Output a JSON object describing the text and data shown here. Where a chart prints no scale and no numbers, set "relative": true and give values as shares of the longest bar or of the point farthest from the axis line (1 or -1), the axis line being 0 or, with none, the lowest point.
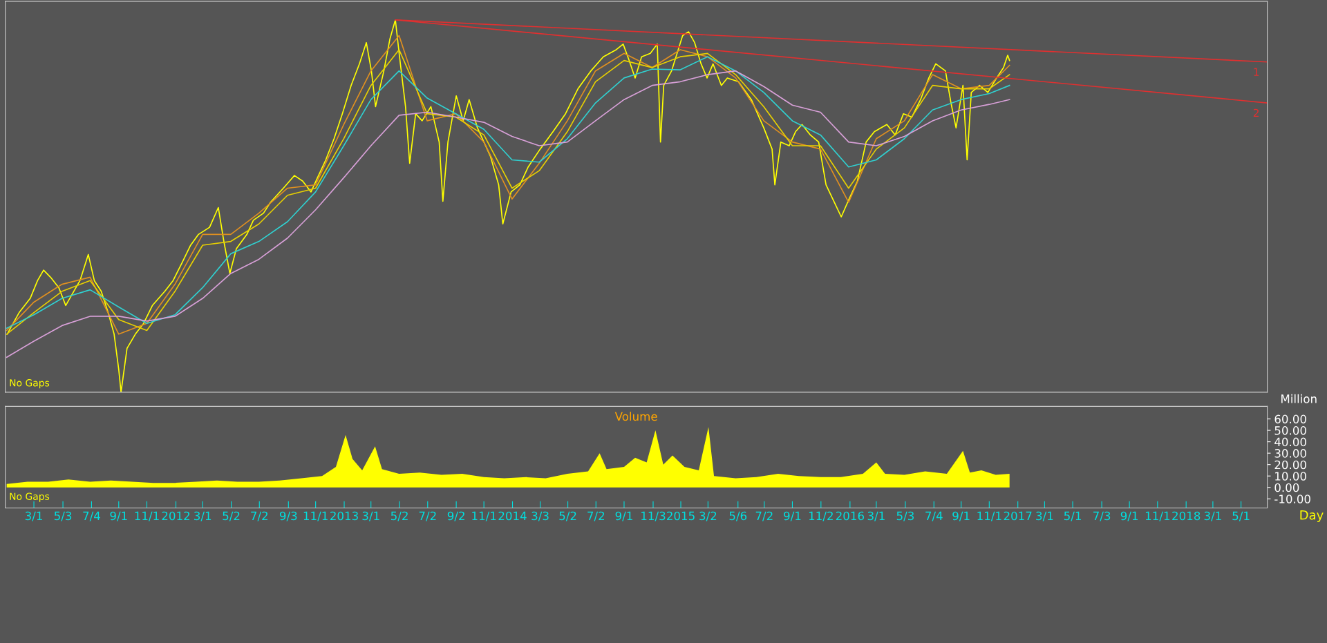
{
  "chart_data": [
    {
      "type": "line",
      "relative": true,
      "grid": false,
      "marker": "none",
      "line_style": "solid",
      "xlim": [
        "2010-12-29",
        "2018-06-27"
      ],
      "annotations": [
        "No Gaps",
        "1",
        "2"
      ],
      "series": [
        {
          "color": "#ffff00",
          "x": [
            "2011-01-02",
            "2011-01-15",
            "2011-01-28",
            "2011-02-21",
            "2011-03-09",
            "2011-03-22",
            "2011-04-06",
            "2011-04-24",
            "2011-05-09",
            "2011-05-22",
            "2011-06-09",
            "2011-06-27",
            "2011-07-10",
            "2011-07-25",
            "2011-08-09",
            "2011-08-22",
            "2011-09-01",
            "2011-09-06",
            "2011-09-19",
            "2011-10-07",
            "2011-10-25",
            "2011-11-13",
            "2011-12-10",
            "2011-12-28",
            "2012-01-16",
            "2012-02-04",
            "2012-02-21",
            "2012-03-16",
            "2012-04-04",
            "2012-04-16",
            "2012-04-29",
            "2012-05-13",
            "2012-06-05",
            "2012-06-19",
            "2012-07-11",
            "2012-07-26",
            "2012-08-23",
            "2012-09-16",
            "2012-10-04",
            "2012-10-22",
            "2012-11-05",
            "2012-11-23",
            "2012-12-11",
            "2012-12-29",
            "2013-01-17",
            "2013-02-04",
            "2013-02-19",
            "2013-03-02",
            "2013-03-11",
            "2013-03-29",
            "2013-04-11",
            "2013-04-23",
            "2013-05-02",
            "2013-05-15",
            "2013-05-24",
            "2013-06-06",
            "2013-06-20",
            "2013-07-09",
            "2013-07-27",
            "2013-08-04",
            "2013-08-15",
            "2013-09-02",
            "2013-09-17",
            "2013-09-30",
            "2013-10-18",
            "2013-11-15",
            "2013-12-03",
            "2013-12-12",
            "2013-12-30",
            "2014-01-18",
            "2014-02-05",
            "2014-03-03",
            "2014-03-31",
            "2014-04-27",
            "2014-05-24",
            "2014-06-21",
            "2014-07-18",
            "2014-08-15",
            "2014-08-30",
            "2014-09-12",
            "2014-09-25",
            "2014-10-09",
            "2014-10-28",
            "2014-11-12",
            "2014-11-19",
            "2014-11-26",
            "2014-12-13",
            "2015-01-06",
            "2015-01-19",
            "2015-02-01",
            "2015-02-15",
            "2015-02-28",
            "2015-03-13",
            "2015-03-31",
            "2015-04-13",
            "2015-05-07",
            "2015-06-04",
            "2015-07-01",
            "2015-07-19",
            "2015-07-25",
            "2015-08-07",
            "2015-08-25",
            "2015-09-08",
            "2015-09-22",
            "2015-10-10",
            "2015-10-28",
            "2015-11-13",
            "2015-12-01",
            "2015-12-16",
            "2016-01-02",
            "2016-01-20",
            "2016-02-08",
            "2016-02-26",
            "2016-03-24",
            "2016-04-11",
            "2016-04-29",
            "2016-05-17",
            "2016-06-05",
            "2016-06-23",
            "2016-07-08",
            "2016-07-29",
            "2016-08-10",
            "2016-08-21",
            "2016-09-05",
            "2016-09-14",
            "2016-09-23",
            "2016-10-11",
            "2016-10-29",
            "2016-11-17",
            "2016-12-02",
            "2016-12-11",
            "2016-12-15"
          ],
          "values": [
            0.156,
            0.185,
            0.214,
            0.252,
            0.3,
            0.328,
            0.309,
            0.281,
            0.233,
            0.261,
            0.3,
            0.37,
            0.3,
            0.271,
            0.214,
            0.156,
            0.061,
            0,
            0.118,
            0.156,
            0.185,
            0.233,
            0.271,
            0.3,
            0.347,
            0.395,
            0.424,
            0.443,
            0.496,
            0.405,
            0.319,
            0.385,
            0.424,
            0.462,
            0.481,
            0.51,
            0.548,
            0.582,
            0.567,
            0.538,
            0.576,
            0.624,
            0.681,
            0.748,
            0.824,
            0.882,
            0.939,
            0.863,
            0.767,
            0.863,
            0.948,
            1,
            0.901,
            0.767,
            0.615,
            0.748,
            0.729,
            0.767,
            0.672,
            0.513,
            0.672,
            0.796,
            0.729,
            0.786,
            0.71,
            0.634,
            0.557,
            0.452,
            0.538,
            0.557,
            0.605,
            0.653,
            0.7,
            0.748,
            0.815,
            0.863,
            0.901,
            0.92,
            0.935,
            0.891,
            0.844,
            0.901,
            0.91,
            0.935,
            0.672,
            0.824,
            0.863,
            0.958,
            0.968,
            0.939,
            0.882,
            0.844,
            0.882,
            0.824,
            0.844,
            0.834,
            0.786,
            0.71,
            0.653,
            0.557,
            0.672,
            0.662,
            0.7,
            0.719,
            0.691,
            0.672,
            0.557,
            0.51,
            0.471,
            0.519,
            0.567,
            0.672,
            0.7,
            0.719,
            0.691,
            0.748,
            0.739,
            0.786,
            0.844,
            0.882,
            0.863,
            0.777,
            0.71,
            0.824,
            0.624,
            0.805,
            0.824,
            0.805,
            0.844,
            0.872,
            0.905,
            0.891
          ]
        },
        {
          "color": "#e09020",
          "x": [
            "2011-01-01",
            "2011-03-01",
            "2011-05-01",
            "2011-07-01",
            "2011-09-01",
            "2011-11-01",
            "2012-01-01",
            "2012-03-01",
            "2012-05-01",
            "2012-07-01",
            "2012-09-01",
            "2012-11-01",
            "2013-01-01",
            "2013-03-01",
            "2013-05-01",
            "2013-07-01",
            "2013-09-01",
            "2013-11-01",
            "2014-01-01",
            "2014-03-01",
            "2014-05-01",
            "2014-07-01",
            "2014-09-01",
            "2014-11-01",
            "2015-01-01",
            "2015-03-01",
            "2015-05-01",
            "2015-07-01",
            "2015-09-01",
            "2015-11-01",
            "2016-01-01",
            "2016-03-01",
            "2016-05-01",
            "2016-07-01",
            "2016-09-01",
            "2016-11-01",
            "2016-12-15"
          ],
          "values": [
            0.166,
            0.242,
            0.29,
            0.309,
            0.156,
            0.185,
            0.29,
            0.424,
            0.424,
            0.481,
            0.548,
            0.557,
            0.719,
            0.863,
            0.958,
            0.729,
            0.748,
            0.672,
            0.519,
            0.615,
            0.729,
            0.863,
            0.91,
            0.872,
            0.92,
            0.901,
            0.844,
            0.729,
            0.672,
            0.653,
            0.51,
            0.681,
            0.729,
            0.853,
            0.815,
            0.824,
            0.878
          ]
        },
        {
          "color": "#e8d000",
          "x": [
            "2011-01-01",
            "2011-03-01",
            "2011-05-01",
            "2011-07-01",
            "2011-09-01",
            "2011-11-01",
            "2012-01-01",
            "2012-03-01",
            "2012-05-01",
            "2012-07-01",
            "2012-09-01",
            "2012-11-01",
            "2013-01-01",
            "2013-03-01",
            "2013-05-01",
            "2013-07-01",
            "2013-09-01",
            "2013-11-01",
            "2014-01-01",
            "2014-03-01",
            "2014-05-01",
            "2014-07-01",
            "2014-09-01",
            "2014-11-01",
            "2015-01-01",
            "2015-03-01",
            "2015-05-01",
            "2015-07-01",
            "2015-09-01",
            "2015-11-01",
            "2016-01-01",
            "2016-03-01",
            "2016-05-01",
            "2016-07-01",
            "2016-09-01",
            "2016-11-01",
            "2016-12-15"
          ],
          "values": [
            0.156,
            0.214,
            0.271,
            0.3,
            0.195,
            0.166,
            0.271,
            0.395,
            0.405,
            0.452,
            0.529,
            0.548,
            0.681,
            0.824,
            0.92,
            0.748,
            0.739,
            0.691,
            0.548,
            0.595,
            0.7,
            0.834,
            0.891,
            0.872,
            0.901,
            0.91,
            0.853,
            0.767,
            0.662,
            0.662,
            0.548,
            0.653,
            0.71,
            0.824,
            0.815,
            0.815,
            0.853
          ]
        },
        {
          "color": "#30d0d0",
          "x": [
            "2011-01-01",
            "2011-03-01",
            "2011-05-01",
            "2011-07-01",
            "2011-09-01",
            "2011-11-01",
            "2012-01-01",
            "2012-03-01",
            "2012-05-01",
            "2012-07-01",
            "2012-09-01",
            "2012-11-01",
            "2013-01-01",
            "2013-03-01",
            "2013-05-01",
            "2013-07-01",
            "2013-09-01",
            "2013-11-01",
            "2014-01-01",
            "2014-03-01",
            "2014-05-01",
            "2014-07-01",
            "2014-09-01",
            "2014-11-01",
            "2015-01-01",
            "2015-03-01",
            "2015-05-01",
            "2015-07-01",
            "2015-09-01",
            "2015-11-01",
            "2016-01-01",
            "2016-03-01",
            "2016-05-01",
            "2016-07-01",
            "2016-09-01",
            "2016-11-01",
            "2016-12-15"
          ],
          "values": [
            0.172,
            0.208,
            0.252,
            0.275,
            0.229,
            0.185,
            0.208,
            0.281,
            0.372,
            0.405,
            0.458,
            0.538,
            0.662,
            0.786,
            0.863,
            0.79,
            0.748,
            0.706,
            0.624,
            0.618,
            0.681,
            0.777,
            0.844,
            0.868,
            0.866,
            0.901,
            0.863,
            0.805,
            0.729,
            0.691,
            0.605,
            0.624,
            0.681,
            0.758,
            0.786,
            0.802,
            0.824
          ]
        },
        {
          "color": "#d8a0d8",
          "x": [
            "2011-01-01",
            "2011-03-01",
            "2011-05-01",
            "2011-07-01",
            "2011-09-01",
            "2011-11-01",
            "2012-01-01",
            "2012-03-01",
            "2012-05-01",
            "2012-07-01",
            "2012-09-01",
            "2012-11-01",
            "2013-01-01",
            "2013-03-01",
            "2013-05-01",
            "2013-07-01",
            "2013-09-01",
            "2013-11-01",
            "2014-01-01",
            "2014-03-01",
            "2014-05-01",
            "2014-07-01",
            "2014-09-01",
            "2014-11-01",
            "2015-01-01",
            "2015-03-01",
            "2015-05-01",
            "2015-07-01",
            "2015-09-01",
            "2015-11-01",
            "2016-01-01",
            "2016-03-01",
            "2016-05-01",
            "2016-07-01",
            "2016-09-01",
            "2016-11-01",
            "2016-12-15"
          ],
          "values": [
            0.094,
            0.137,
            0.179,
            0.204,
            0.204,
            0.191,
            0.204,
            0.252,
            0.319,
            0.357,
            0.414,
            0.49,
            0.576,
            0.662,
            0.744,
            0.752,
            0.739,
            0.725,
            0.687,
            0.662,
            0.672,
            0.729,
            0.786,
            0.824,
            0.834,
            0.853,
            0.863,
            0.821,
            0.771,
            0.752,
            0.672,
            0.662,
            0.687,
            0.729,
            0.758,
            0.773,
            0.786
          ]
        },
        {
          "color": "#e03030",
          "x": [
            "2013-04-23",
            "2018-06-27"
          ],
          "values": [
            1,
            0.887
          ]
        },
        {
          "color": "#e03030",
          "x": [
            "2013-04-23",
            "2018-06-27"
          ],
          "values": [
            1,
            0.777
          ]
        }
      ]
    },
    {
      "type": "area",
      "title": "Volume",
      "ylabel": "Million",
      "xlabel": "Day",
      "grid": false,
      "xlim": [
        "2010-12-29",
        "2018-06-27"
      ],
      "ylim": [
        -18,
        71
      ],
      "yticks": [
        {
          "value": -10,
          "label": "-10.00"
        },
        {
          "value": 0,
          "label": "0.00"
        },
        {
          "value": 10,
          "label": "10.00"
        },
        {
          "value": 20,
          "label": "20.00"
        },
        {
          "value": 30,
          "label": "30.00"
        },
        {
          "value": 40,
          "label": "40.00"
        },
        {
          "value": 50,
          "label": "50.00"
        },
        {
          "value": 60,
          "label": "60.00"
        }
      ],
      "xticks": [
        {
          "value": "2011-03-01",
          "label": "3/1"
        },
        {
          "value": "2011-05-03",
          "label": "5/3"
        },
        {
          "value": "2011-07-04",
          "label": "7/4"
        },
        {
          "value": "2011-09-01",
          "label": "9/1"
        },
        {
          "value": "2011-11-01",
          "label": "11/1"
        },
        {
          "value": "2012-01-03",
          "label": "2012"
        },
        {
          "value": "2012-03-01",
          "label": "3/1"
        },
        {
          "value": "2012-05-02",
          "label": "5/2"
        },
        {
          "value": "2012-07-02",
          "label": "7/2"
        },
        {
          "value": "2012-09-03",
          "label": "9/3"
        },
        {
          "value": "2012-11-01",
          "label": "11/1"
        },
        {
          "value": "2013-01-02",
          "label": "2013"
        },
        {
          "value": "2013-03-01",
          "label": "3/1"
        },
        {
          "value": "2013-05-02",
          "label": "5/2"
        },
        {
          "value": "2013-07-02",
          "label": "7/2"
        },
        {
          "value": "2013-09-02",
          "label": "9/2"
        },
        {
          "value": "2013-11-01",
          "label": "11/1"
        },
        {
          "value": "2014-01-02",
          "label": "2014"
        },
        {
          "value": "2014-03-03",
          "label": "3/3"
        },
        {
          "value": "2014-05-02",
          "label": "5/2"
        },
        {
          "value": "2014-07-02",
          "label": "7/2"
        },
        {
          "value": "2014-09-01",
          "label": "9/1"
        },
        {
          "value": "2014-11-03",
          "label": "11/3"
        },
        {
          "value": "2015-01-02",
          "label": "2015"
        },
        {
          "value": "2015-03-02",
          "label": "3/2"
        },
        {
          "value": "2015-05-06",
          "label": "5/6"
        },
        {
          "value": "2015-07-02",
          "label": "7/2"
        },
        {
          "value": "2015-09-01",
          "label": "9/1"
        },
        {
          "value": "2015-11-02",
          "label": "11/2"
        },
        {
          "value": "2016-01-04",
          "label": "2016"
        },
        {
          "value": "2016-03-01",
          "label": "3/1"
        },
        {
          "value": "2016-05-03",
          "label": "5/3"
        },
        {
          "value": "2016-07-04",
          "label": "7/4"
        },
        {
          "value": "2016-09-01",
          "label": "9/1"
        },
        {
          "value": "2016-11-01",
          "label": "11/1"
        },
        {
          "value": "2017-01-02",
          "label": "2017"
        },
        {
          "value": "2017-03-01",
          "label": "3/1"
        },
        {
          "value": "2017-05-01",
          "label": "5/1"
        },
        {
          "value": "2017-07-03",
          "label": "7/3"
        },
        {
          "value": "2017-09-01",
          "label": "9/1"
        },
        {
          "value": "2017-11-01",
          "label": "11/1"
        },
        {
          "value": "2018-01-02",
          "label": "2018"
        },
        {
          "value": "2018-03-01",
          "label": "3/1"
        },
        {
          "value": "2018-05-01",
          "label": "5/1"
        }
      ],
      "annotations": [
        "No Gaps"
      ],
      "series": [
        {
          "color": "#ffff00",
          "x": [
            "2011-01-01",
            "2011-02-15",
            "2011-04-01",
            "2011-05-15",
            "2011-07-01",
            "2011-08-15",
            "2011-10-01",
            "2011-11-15",
            "2012-01-01",
            "2012-02-15",
            "2012-04-01",
            "2012-05-15",
            "2012-07-01",
            "2012-08-15",
            "2012-10-01",
            "2012-11-15",
            "2012-12-15",
            "2013-01-05",
            "2013-01-20",
            "2013-02-10",
            "2013-03-10",
            "2013-03-25",
            "2013-05-01",
            "2013-06-15",
            "2013-08-01",
            "2013-09-15",
            "2013-11-01",
            "2013-12-15",
            "2014-02-01",
            "2014-03-15",
            "2014-05-01",
            "2014-06-15",
            "2014-07-10",
            "2014-07-25",
            "2014-09-01",
            "2014-09-25",
            "2014-10-20",
            "2014-11-08",
            "2014-11-25",
            "2014-12-15",
            "2015-01-10",
            "2015-02-10",
            "2015-03-03",
            "2015-03-15",
            "2015-05-01",
            "2015-06-15",
            "2015-08-01",
            "2015-09-15",
            "2015-11-01",
            "2015-12-15",
            "2016-02-01",
            "2016-03-01",
            "2016-03-20",
            "2016-05-01",
            "2016-06-15",
            "2016-08-01",
            "2016-09-05",
            "2016-09-20",
            "2016-10-15",
            "2016-11-15",
            "2016-12-15"
          ],
          "values": [
            3,
            5,
            5,
            7,
            5,
            6,
            5,
            4,
            4,
            5,
            6,
            5,
            5,
            6,
            8,
            10,
            18,
            46,
            25,
            15,
            36,
            16,
            12,
            13,
            11,
            12,
            9,
            8,
            9,
            8,
            12,
            14,
            30,
            16,
            18,
            26,
            22,
            50,
            20,
            28,
            18,
            15,
            53,
            10,
            8,
            9,
            12,
            10,
            9,
            9,
            12,
            22,
            12,
            11,
            14,
            12,
            32,
            13,
            15,
            11,
            12
          ]
        }
      ]
    }
  ]
}
